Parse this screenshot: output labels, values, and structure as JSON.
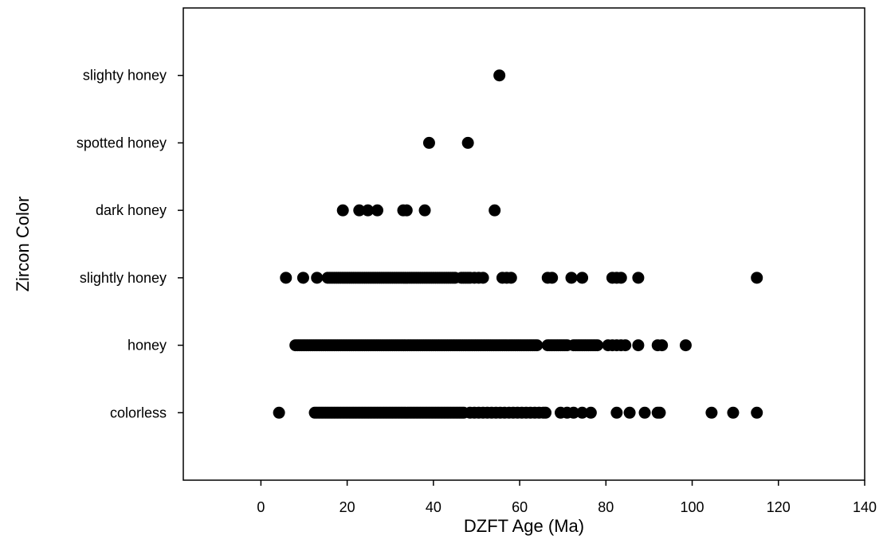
{
  "chart_data": {
    "type": "scatter",
    "title": "",
    "xlabel": "DZFT Age (Ma)",
    "ylabel": "Zircon Color",
    "xlim": [
      -18,
      140
    ],
    "xticks": [
      0,
      20,
      40,
      60,
      80,
      100,
      120,
      140
    ],
    "categories": [
      "colorless",
      "honey",
      "slightly honey",
      "dark honey",
      "spotted honey",
      "slighty honey"
    ],
    "grid": false,
    "legend": "none",
    "marker_color": "#000000",
    "series": [
      {
        "category": "colorless",
        "x": [
          4.2,
          12.5,
          13,
          13.5,
          14,
          14.5,
          15,
          15.5,
          16,
          16.5,
          17,
          17.5,
          18,
          18.5,
          19,
          19.5,
          20,
          20.5,
          21,
          21.5,
          22,
          22.5,
          23,
          23.5,
          24,
          24.5,
          25,
          25.5,
          26,
          26.5,
          27,
          27.5,
          28,
          28.5,
          29,
          29.5,
          30,
          30.5,
          31,
          31.5,
          32,
          32.5,
          33,
          33.5,
          34,
          34.5,
          35,
          35.5,
          36,
          36.5,
          37,
          37.5,
          38,
          38.5,
          39,
          39.5,
          40,
          40.5,
          41,
          41.5,
          42,
          42.5,
          43,
          43.5,
          44,
          44.5,
          45,
          45.5,
          46,
          46.5,
          47,
          48.5,
          49.5,
          50.5,
          51.5,
          52.5,
          53.5,
          54.5,
          55.5,
          56.5,
          57.5,
          58.5,
          59.5,
          60.5,
          61.5,
          62.5,
          63.5,
          64.5,
          65.5,
          66,
          69.5,
          71,
          72.5,
          74.5,
          76.5,
          82.5,
          85.5,
          89,
          92,
          92.5,
          104.5,
          109.5,
          115
        ]
      },
      {
        "category": "honey",
        "x": [
          8,
          8.5,
          9,
          9.5,
          10,
          10.5,
          11,
          11.5,
          12,
          12.5,
          13,
          13.5,
          14,
          14.5,
          15,
          15.5,
          16,
          16.5,
          17,
          17.5,
          18,
          18.5,
          19,
          19.5,
          20,
          20.5,
          21,
          21.5,
          22,
          22.5,
          23,
          23.5,
          24,
          24.5,
          25,
          25.5,
          26,
          26.5,
          27,
          27.5,
          28,
          28.5,
          29,
          29.5,
          30,
          30.5,
          31,
          31.5,
          32,
          32.5,
          33,
          33.5,
          34,
          34.5,
          35,
          35.5,
          36,
          36.5,
          37,
          37.5,
          38,
          38.5,
          39,
          39.5,
          40,
          40.5,
          41,
          41.5,
          42,
          42.5,
          43,
          43.5,
          44,
          44.5,
          45,
          45.5,
          46,
          46.5,
          47,
          47.5,
          48,
          48.5,
          49,
          49.5,
          50,
          50.5,
          51,
          51.5,
          52,
          52.5,
          53,
          53.5,
          54,
          54.5,
          55,
          55.5,
          56,
          56.5,
          57,
          57.5,
          58,
          58.5,
          59,
          59.5,
          60,
          60.5,
          61,
          61.5,
          62,
          62.5,
          63,
          63.5,
          64,
          66.5,
          67,
          67.5,
          68,
          68.5,
          69,
          69.5,
          70,
          70.5,
          71,
          72.5,
          73,
          73.5,
          74,
          74.5,
          75,
          75.5,
          76,
          76.5,
          77,
          77.5,
          78,
          80.5,
          81.5,
          82.5,
          83.5,
          84.5,
          87.5,
          92,
          93,
          98.5
        ]
      },
      {
        "category": "slightly honey",
        "x": [
          5.8,
          9.8,
          13,
          15.5,
          16,
          16.5,
          17,
          17.5,
          18,
          18.5,
          19,
          19.5,
          20,
          20.5,
          21,
          21.5,
          22,
          22.5,
          23,
          23.5,
          24,
          24.5,
          25,
          25.5,
          26,
          26.5,
          27,
          27.5,
          28,
          28.5,
          29,
          29.5,
          30,
          30.5,
          31,
          31.5,
          32,
          32.5,
          33,
          33.5,
          34,
          34.5,
          35,
          35.5,
          36,
          36.5,
          37,
          37.5,
          38,
          38.5,
          39,
          39.5,
          40,
          40.5,
          41,
          41.5,
          42,
          42.5,
          43,
          43.5,
          44,
          44.5,
          45,
          46.5,
          47,
          47.5,
          48,
          48.5,
          49.5,
          50.5,
          51.5,
          56,
          57,
          58,
          66.5,
          67.5,
          72,
          74.5,
          81.5,
          82.5,
          83.5,
          87.5,
          115
        ]
      },
      {
        "category": "dark honey",
        "x": [
          19,
          22.8,
          24.8,
          27,
          33,
          33.8,
          38,
          54.2
        ]
      },
      {
        "category": "spotted honey",
        "x": [
          39,
          48
        ]
      },
      {
        "category": "slighty honey",
        "x": [
          55.3
        ]
      }
    ]
  }
}
